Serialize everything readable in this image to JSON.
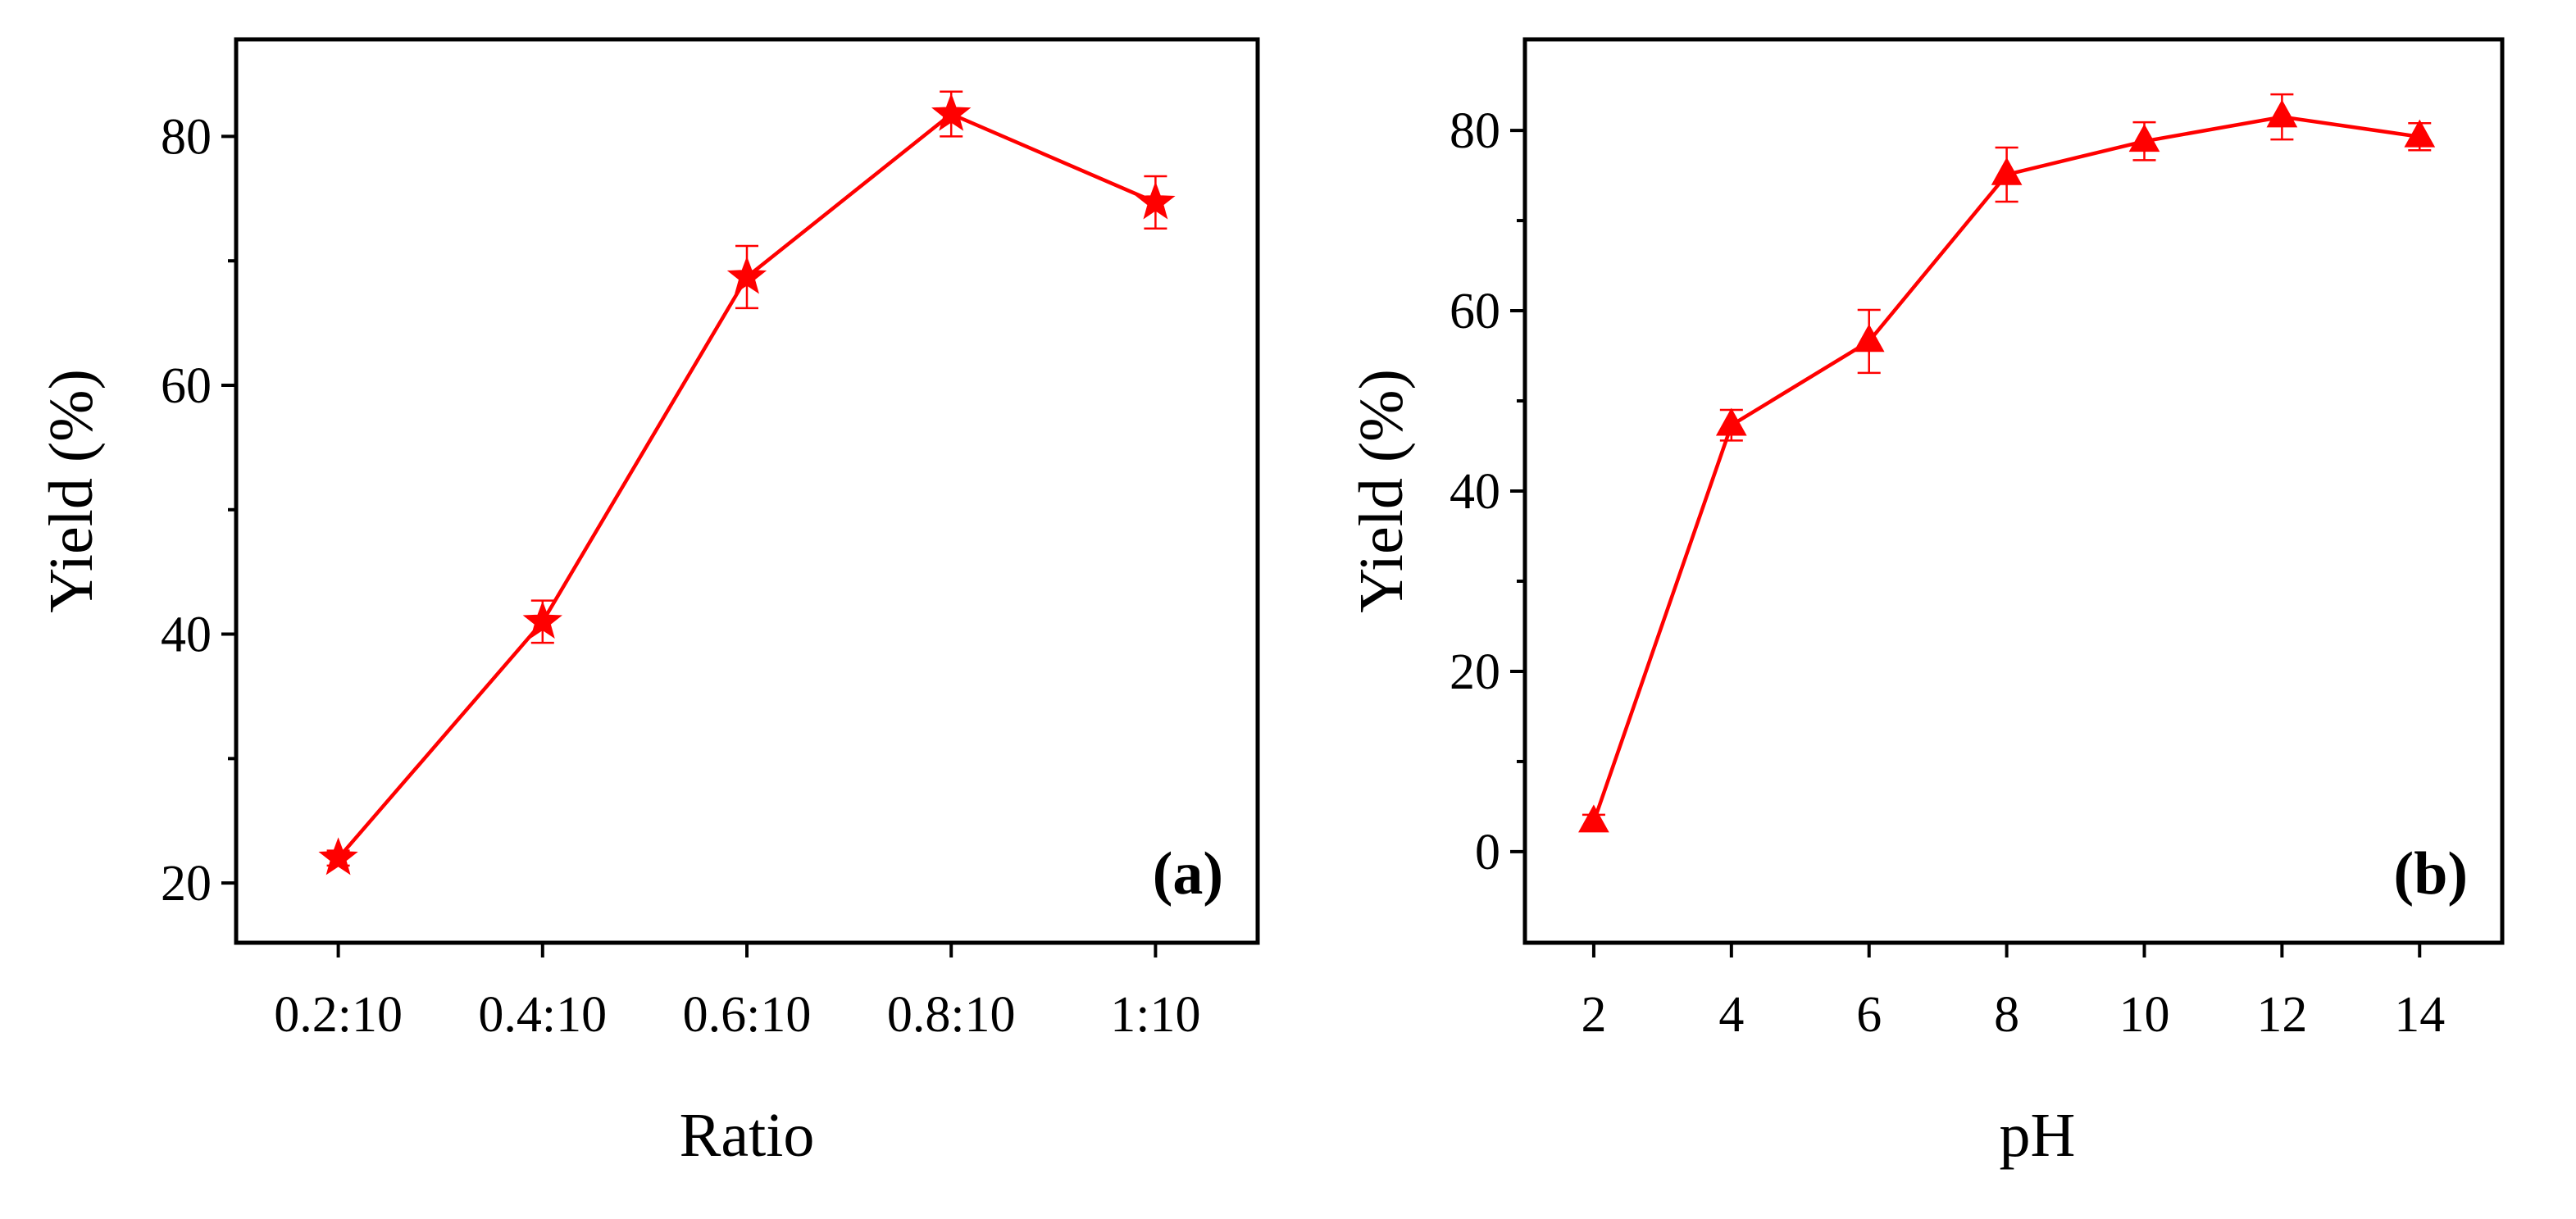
{
  "chart_data": [
    {
      "type": "line",
      "panel_label": "(a)",
      "xlabel": "Ratio",
      "ylabel": "Yield (%)",
      "categories": [
        "0.2:10",
        "0.4:10",
        "0.6:10",
        "0.8:10",
        "1:10"
      ],
      "values": [
        22.0,
        41.0,
        68.7,
        81.8,
        74.7
      ],
      "errors": [
        0.6,
        1.7,
        2.5,
        1.8,
        2.1
      ],
      "ylim": [
        15.2,
        87.8
      ],
      "yticks_major": [
        20,
        40,
        60,
        80
      ],
      "yticks_minor": [
        30,
        50,
        70
      ],
      "marker": "star",
      "color": "#ff0000"
    },
    {
      "type": "line",
      "panel_label": "(b)",
      "xlabel": "pH",
      "ylabel": "Yield (%)",
      "x": [
        2,
        4,
        6,
        8,
        10,
        12,
        14
      ],
      "xlim": [
        1,
        15.2
      ],
      "values": [
        3.3,
        47.3,
        56.6,
        75.1,
        78.8,
        81.5,
        79.3
      ],
      "errors": [
        0.8,
        1.7,
        3.5,
        3.0,
        2.1,
        2.5,
        1.5
      ],
      "ylim": [
        -10.1,
        90.1
      ],
      "yticks_major": [
        0,
        20,
        40,
        60,
        80
      ],
      "yticks_minor": [
        10,
        30,
        50,
        70
      ],
      "marker": "triangle",
      "color": "#ff0000"
    }
  ]
}
